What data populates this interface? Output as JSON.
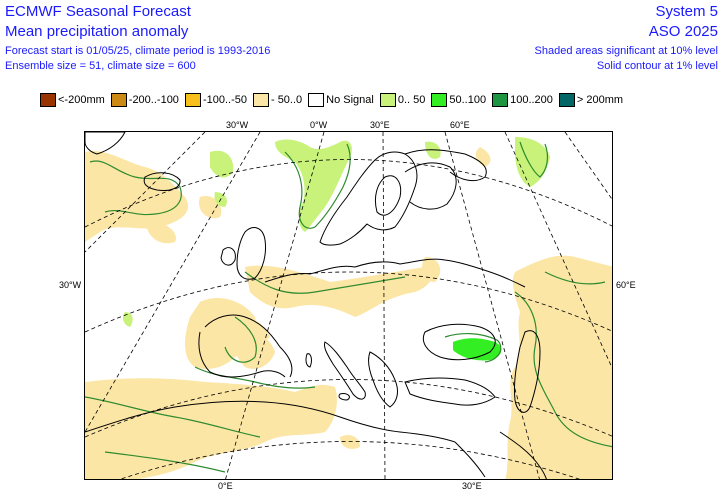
{
  "header": {
    "title_left_1": "ECMWF Seasonal Forecast",
    "title_left_2": "Mean precipitation anomaly",
    "info_left_1": "Forecast start is 01/05/25, climate period is 1993-2016",
    "info_left_2": "Ensemble size = 51, climate size = 600",
    "title_right_1": "System 5",
    "title_right_2": "ASO 2025",
    "info_right_1": "Shaded areas significant at 10% level",
    "info_right_2": "Solid contour at 1% level"
  },
  "legend": [
    {
      "label": "<-200mm",
      "color": "#993300"
    },
    {
      "label": "-200..-100",
      "color": "#cc8a14"
    },
    {
      "label": "-100..-50",
      "color": "#f7c01c"
    },
    {
      "label": "- 50..0",
      "color": "#fce6a6"
    },
    {
      "label": "No Signal",
      "color": "#ffffff"
    },
    {
      "label": "0.. 50",
      "color": "#c8f27a"
    },
    {
      "label": "50..100",
      "color": "#33ee22"
    },
    {
      "label": "100..200",
      "color": "#1c9641"
    },
    {
      "label": "> 200mm",
      "color": "#006666"
    }
  ],
  "map": {
    "graticule_labels": {
      "top_30w": "30°W",
      "top_0": "0°W",
      "top_30e": "30°E",
      "top_60e": "60°E",
      "left_30w": "30°W",
      "right_60e": "60°E",
      "bottom_0": "0°E",
      "bottom_30e": "30°E"
    },
    "colors": {
      "dry": "#fce6a6",
      "wet": "#c8f27a",
      "wet_strong": "#33ee22",
      "contour": "#2e8b2e",
      "coast": "#000000",
      "grid": "#000000"
    }
  }
}
